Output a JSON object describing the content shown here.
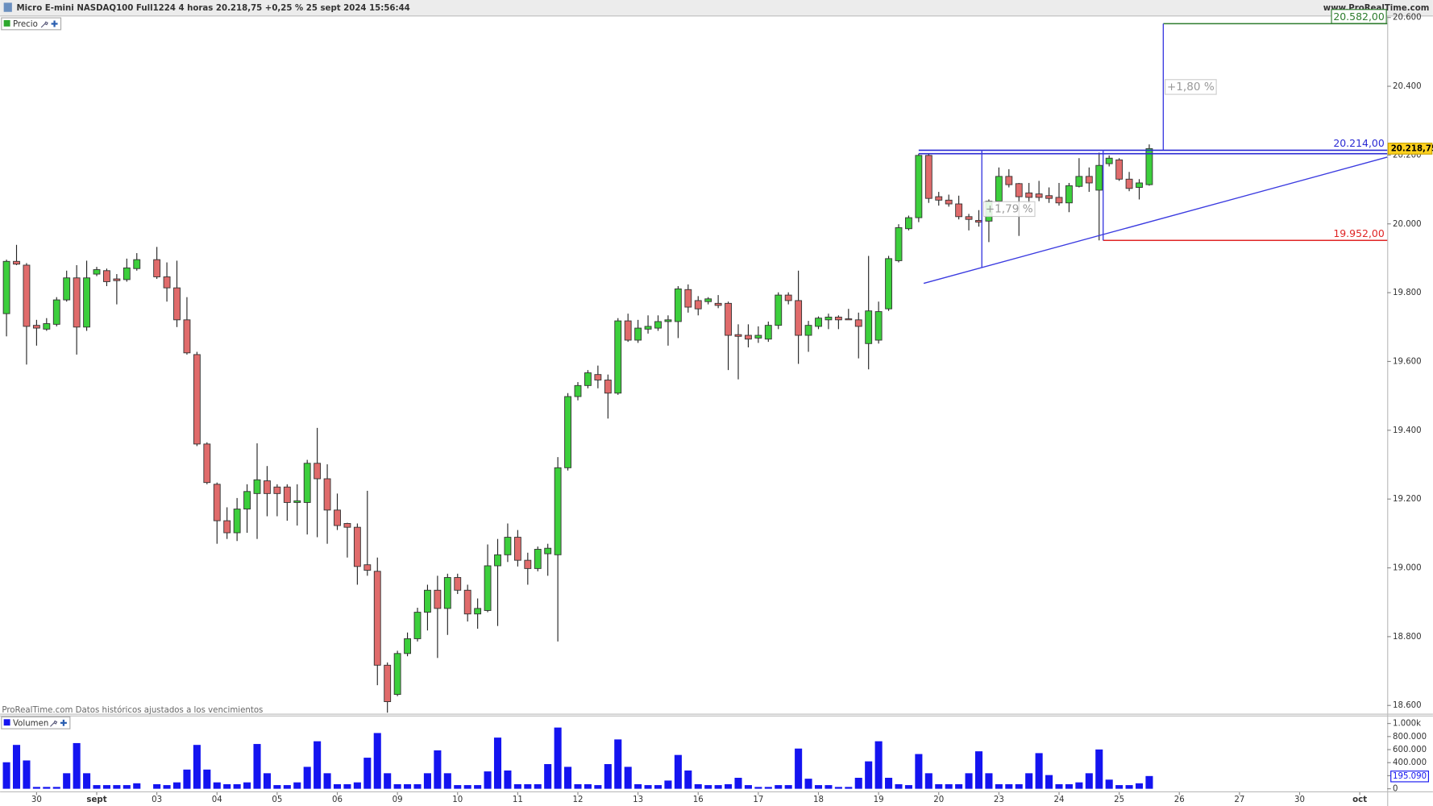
{
  "header": {
    "title": "Micro E-mini NASDAQ100 Full1224 4 horas 20.218,75 +0,25 % 25 sept 2024 15:56:44",
    "site": "www.ProRealTime.com",
    "note": "ProRealTime.com Datos históricos ajustados a los vencimientos"
  },
  "chart_data": [
    {
      "type": "candlestick",
      "panel_label": "Precio",
      "up_color": "#3ccf3c",
      "down_color": "#e06b6b",
      "open": [
        19739,
        19891,
        19880,
        19705,
        19694,
        19708,
        19779,
        19843,
        19700,
        19854,
        19864,
        19840,
        19838,
        19870,
        null,
        19896,
        19846,
        19814,
        19721,
        19620,
        19360,
        19243,
        19137,
        19102,
        19171,
        19216,
        19253,
        19235,
        19235,
        19190,
        19190,
        19304,
        19259,
        19168,
        19129,
        19118,
        19009,
        18990,
        18717,
        18632,
        18751,
        18794,
        18871,
        18935,
        18882,
        18972,
        18935,
        18866,
        18876,
        19006,
        19038,
        19089,
        19022,
        18998,
        19041,
        19038,
        19291,
        19498,
        19530,
        19562,
        19546,
        19508,
        19718,
        19662,
        19694,
        19697,
        19716,
        19716,
        19809,
        19777,
        19774,
        19769,
        19769,
        19678,
        19676,
        19668,
        19665,
        19705,
        19793,
        19777,
        19676,
        19702,
        19721,
        19729,
        19724,
        19721,
        19652,
        19662,
        19753,
        19893,
        19986,
        20018,
        20199,
        20079,
        20069,
        20058,
        20021,
        20010,
        20008,
        20066,
        20138,
        20117,
        20090,
        20087,
        20082,
        20077,
        20061,
        20109,
        20138,
        20098,
        20175,
        20186,
        20130,
        20106,
        20114
      ],
      "high": [
        19896,
        19939,
        19886,
        19721,
        19726,
        19787,
        19864,
        19880,
        19893,
        19875,
        19870,
        19854,
        19899,
        19915,
        null,
        19933,
        19888,
        19893,
        19787,
        19628,
        19365,
        19248,
        19176,
        19203,
        19243,
        19362,
        19296,
        19243,
        19243,
        19243,
        19314,
        19407,
        19301,
        19216,
        19131,
        19129,
        19224,
        19030,
        18725,
        18759,
        18812,
        18884,
        18951,
        18977,
        18983,
        18983,
        18951,
        18911,
        19068,
        19084,
        19129,
        19110,
        19044,
        19062,
        19070,
        19322,
        19508,
        19540,
        19575,
        19588,
        19562,
        19726,
        19739,
        19721,
        19734,
        19734,
        19734,
        19819,
        19824,
        19790,
        19787,
        19793,
        19774,
        19708,
        19708,
        19702,
        19716,
        19801,
        19801,
        19864,
        19718,
        19731,
        19739,
        19734,
        19753,
        19742,
        19907,
        19774,
        19907,
        19999,
        20024,
        20204,
        20204,
        20093,
        20085,
        20082,
        20029,
        20040,
        20071,
        20164,
        20159,
        20119,
        20119,
        20125,
        20106,
        20119,
        20119,
        20191,
        20164,
        20207,
        20199,
        20191,
        20151,
        20130,
        20231
      ],
      "low": [
        19673,
        19880,
        19591,
        19646,
        19689,
        19702,
        19774,
        19620,
        19689,
        19848,
        19819,
        19766,
        19832,
        19864,
        null,
        19840,
        19774,
        19700,
        19620,
        19354,
        19243,
        19070,
        19084,
        19078,
        19102,
        19084,
        19150,
        19150,
        19137,
        19123,
        19097,
        19089,
        19070,
        19110,
        19030,
        18951,
        18977,
        18659,
        18579,
        18627,
        18743,
        18786,
        18818,
        18738,
        18805,
        18924,
        18844,
        18823,
        18871,
        18831,
        19017,
        19004,
        18951,
        18990,
        18977,
        18786,
        19283,
        19487,
        19522,
        19522,
        19434,
        19503,
        19657,
        19654,
        19681,
        19689,
        19646,
        19668,
        19742,
        19734,
        19766,
        19755,
        19575,
        19548,
        19641,
        19654,
        19657,
        19694,
        19766,
        19593,
        19628,
        19694,
        19694,
        19694,
        19721,
        19609,
        19577,
        19652,
        19747,
        19888,
        19981,
        20005,
        20061,
        20053,
        20050,
        20013,
        19981,
        19992,
        19947,
        20053,
        20106,
        19965,
        20061,
        20066,
        20061,
        20053,
        20034,
        20106,
        20093,
        19952,
        20167,
        20125,
        20095,
        20071,
        20111
      ],
      "close": [
        19891,
        19883,
        19702,
        19697,
        19710,
        19779,
        19843,
        19700,
        19843,
        19867,
        19832,
        19835,
        19872,
        19896,
        null,
        19846,
        19814,
        19721,
        19625,
        19360,
        19248,
        19137,
        19102,
        19171,
        19222,
        19256,
        19216,
        19216,
        19190,
        19195,
        19304,
        19259,
        19168,
        19123,
        19118,
        19004,
        18993,
        18717,
        18611,
        18751,
        18794,
        18871,
        18935,
        18882,
        18972,
        18935,
        18866,
        18882,
        19006,
        19038,
        19089,
        19022,
        18998,
        19054,
        19057,
        19291,
        19498,
        19530,
        19567,
        19546,
        19508,
        19718,
        19662,
        19697,
        19702,
        19716,
        19721,
        19811,
        19758,
        19753,
        19782,
        19763,
        19676,
        19673,
        19665,
        19676,
        19705,
        19793,
        19777,
        19676,
        19705,
        19726,
        19729,
        19721,
        19721,
        19702,
        19747,
        19745,
        19899,
        19989,
        20018,
        20199,
        20074,
        20069,
        20058,
        20021,
        20013,
        20005,
        20066,
        20138,
        20114,
        20079,
        20077,
        20077,
        20074,
        20061,
        20111,
        20138,
        20119,
        20170,
        20191,
        20130,
        20103,
        20119,
        20218.75
      ],
      "last_label": "20.218,75",
      "xlim": [
        -0.64,
        137.74
      ],
      "ylim": [
        18576,
        20603
      ],
      "yticks": [
        {
          "value": 20600,
          "label": "20.600"
        },
        {
          "value": 20400,
          "label": "20.400"
        },
        {
          "value": 20200,
          "label": "20.200"
        },
        {
          "value": 20000,
          "label": "20.000"
        },
        {
          "value": 19800,
          "label": "19.800"
        },
        {
          "value": 19600,
          "label": "19.600"
        },
        {
          "value": 19400,
          "label": "19.400"
        },
        {
          "value": 19200,
          "label": "19.200"
        },
        {
          "value": 19000,
          "label": "19.000"
        },
        {
          "value": 18800,
          "label": "18.800"
        },
        {
          "value": 18600,
          "label": "18.600"
        }
      ],
      "hlines": [
        {
          "value": 20214,
          "from": 91,
          "color": "#2a2ad4",
          "label": "20.214,00"
        },
        {
          "value": 20204,
          "from": 91,
          "color": "#2a2ad4"
        },
        {
          "value": 19952,
          "from": 109.4,
          "color": "#e02424",
          "label": "19.952,00"
        },
        {
          "value": 20582,
          "from": 115.4,
          "color": "#2e7d2e",
          "label": "20.582,00",
          "boxed": true
        }
      ],
      "trendline": {
        "x": [
          91.5,
          137.74
        ],
        "y": [
          19827,
          20194
        ],
        "color": "#3a3ae0"
      },
      "measures": [
        {
          "x": 97.3,
          "from": 19872,
          "to": 20214,
          "color": "#3a3ae0",
          "label": "+1,79 %"
        },
        {
          "x": 109.4,
          "from": 19952,
          "to": 20214,
          "color": "#3a3ae0"
        },
        {
          "x": 115.4,
          "from": 20214,
          "to": 20582,
          "color": "#3a3ae0",
          "label": "+1,80 %"
        }
      ]
    },
    {
      "type": "bar",
      "panel_label": "Volumen",
      "color": "#1414f0",
      "values": [
        406000,
        672000,
        434000,
        28000,
        28000,
        28000,
        238000,
        700000,
        238000,
        56000,
        56000,
        56000,
        56000,
        84000,
        null,
        70000,
        56000,
        98000,
        294000,
        672000,
        294000,
        98000,
        70000,
        70000,
        98000,
        686000,
        238000,
        56000,
        56000,
        98000,
        336000,
        728000,
        238000,
        70000,
        70000,
        98000,
        476000,
        854000,
        238000,
        70000,
        70000,
        70000,
        238000,
        588000,
        238000,
        56000,
        56000,
        56000,
        266000,
        784000,
        280000,
        70000,
        70000,
        70000,
        378000,
        938000,
        336000,
        70000,
        70000,
        56000,
        378000,
        756000,
        336000,
        70000,
        56000,
        56000,
        126000,
        518000,
        280000,
        70000,
        56000,
        56000,
        70000,
        168000,
        56000,
        28000,
        28000,
        56000,
        56000,
        616000,
        154000,
        56000,
        56000,
        28000,
        28000,
        168000,
        420000,
        728000,
        168000,
        70000,
        56000,
        532000,
        238000,
        70000,
        70000,
        70000,
        238000,
        574000,
        238000,
        70000,
        70000,
        70000,
        238000,
        546000,
        210000,
        70000,
        70000,
        98000,
        238000,
        602000,
        140000,
        56000,
        56000,
        84000,
        195090
      ],
      "last_label": "195.090",
      "xlim": [
        -0.64,
        137.74
      ],
      "ylim": [
        -40000,
        1080000
      ],
      "yticks": [
        {
          "value": 1000000,
          "label": "1.000k"
        },
        {
          "value": 800000,
          "label": "800.000"
        },
        {
          "value": 600000,
          "label": "600.000"
        },
        {
          "value": 400000,
          "label": "400.000"
        },
        {
          "value": 200000,
          "label": "200.000"
        },
        0
      ],
      "xticks": [
        {
          "value": 3,
          "label": "30"
        },
        {
          "value": 9,
          "label": "sept"
        },
        {
          "value": 15,
          "label": "03"
        },
        {
          "value": 21,
          "label": "04"
        },
        {
          "value": 27,
          "label": "05"
        },
        {
          "value": 33,
          "label": "06"
        },
        {
          "value": 39,
          "label": "09"
        },
        {
          "value": 45,
          "label": "10"
        },
        {
          "value": 51,
          "label": "11"
        },
        {
          "value": 57,
          "label": "12"
        },
        {
          "value": 63,
          "label": "13"
        },
        {
          "value": 69,
          "label": "16"
        },
        {
          "value": 75,
          "label": "17"
        },
        {
          "value": 81,
          "label": "18"
        },
        {
          "value": 87,
          "label": "19"
        },
        {
          "value": 93,
          "label": "20"
        },
        {
          "value": 99,
          "label": "23"
        },
        {
          "value": 105,
          "label": "24"
        },
        {
          "value": 111,
          "label": "25"
        },
        {
          "value": 117,
          "label": "26"
        },
        {
          "value": 123,
          "label": "27"
        },
        {
          "value": 129,
          "label": "30"
        },
        {
          "value": 135,
          "label": "oct"
        }
      ]
    }
  ]
}
